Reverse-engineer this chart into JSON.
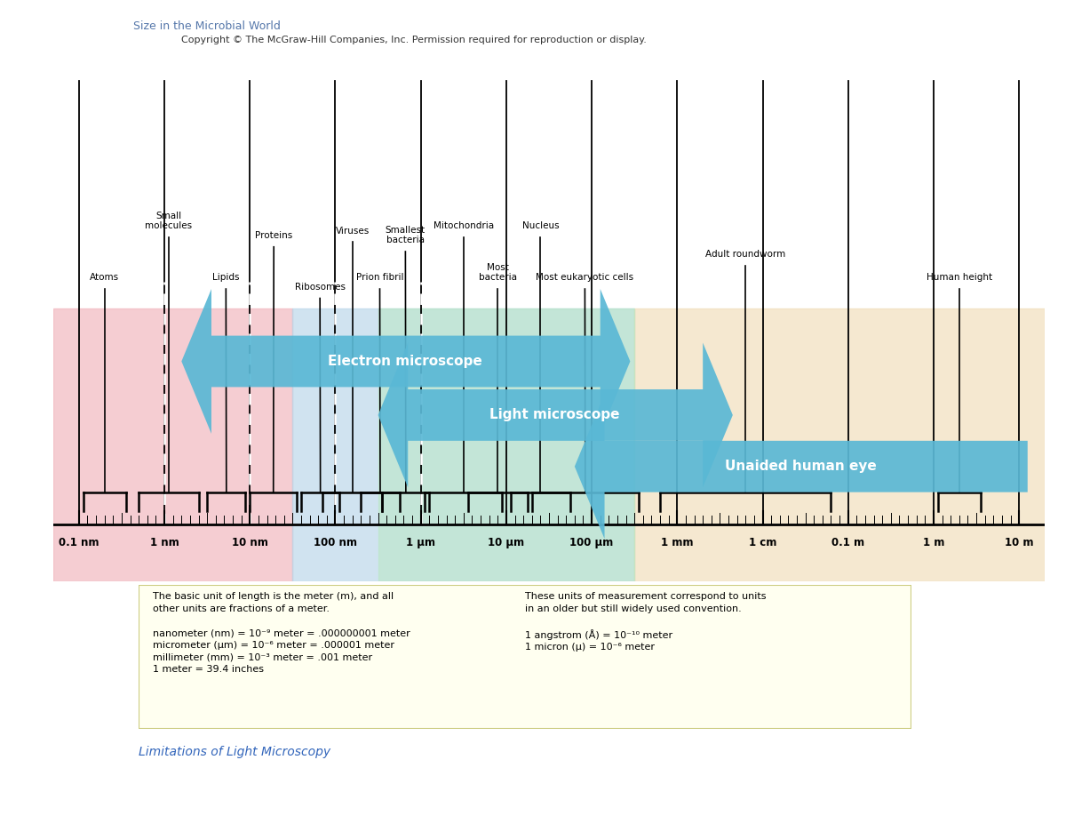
{
  "title": "Size in the Microbial World",
  "copyright": "Copyright © The McGraw-Hill Companies, Inc. Permission required for reproduction or display.",
  "limitations_text": "Limitations of Light Microscopy",
  "axis_labels": [
    "0.1 nm",
    "1 nm",
    "10 nm",
    "100 nm",
    "1 μm",
    "10 μm",
    "100 μm",
    "1 mm",
    "1 cm",
    "0.1 m",
    "1 m",
    "10 m"
  ],
  "axis_positions": [
    0,
    1,
    2,
    3,
    4,
    5,
    6,
    7,
    8,
    9,
    10,
    11
  ],
  "note_box_left": "The basic unit of length is the meter (m), and all\nother units are fractions of a meter.\n\nnanometer (nm) = 10⁻⁹ meter = .000000001 meter\nmicrometer (μm) = 10⁻⁶ meter = .000001 meter\nmillimeter (mm) = 10⁻³ meter = .001 meter\n1 meter = 39.4 inches",
  "note_box_right": "These units of measurement correspond to units\nin an older but still widely used convention.\n\n1 angstrom (Å) = 10⁻¹⁰ meter\n1 micron (μ) = 10⁻⁶ meter"
}
